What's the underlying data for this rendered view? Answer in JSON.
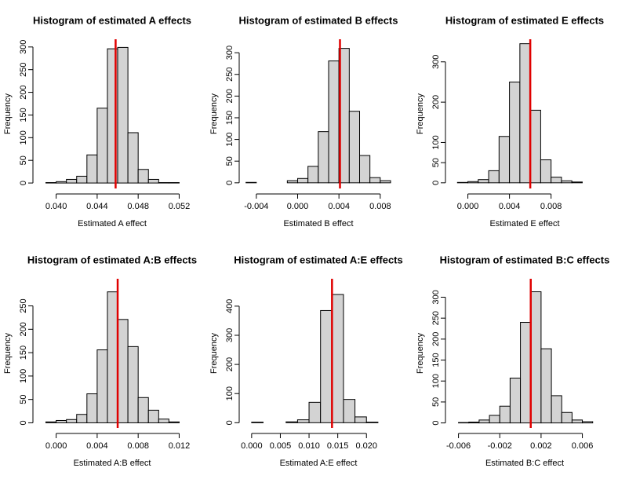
{
  "chart_data": [
    {
      "type": "histogram",
      "title": "Histogram of estimated A effects",
      "xlabel": "Estimated A effect",
      "ylabel": "Frequency",
      "bins": [
        0.039,
        0.04,
        0.041,
        0.042,
        0.043,
        0.044,
        0.045,
        0.046,
        0.047,
        0.048,
        0.049,
        0.05,
        0.051,
        0.052
      ],
      "values": [
        1,
        3,
        8,
        15,
        62,
        165,
        296,
        299,
        111,
        30,
        8,
        1,
        1
      ],
      "color": "#d3d3d3",
      "vline": 0.0458,
      "vline_color": "#e00000",
      "xlim": [
        0.0385,
        0.0525
      ],
      "ylim": [
        -12,
        317
      ],
      "xticks": [
        {
          "value": 0.04,
          "label": "0.040"
        },
        {
          "value": 0.044,
          "label": "0.044"
        },
        {
          "value": 0.048,
          "label": "0.048"
        },
        {
          "value": 0.052,
          "label": "0.052"
        }
      ],
      "yticks": [
        0,
        50,
        100,
        150,
        200,
        250,
        300
      ]
    },
    {
      "type": "histogram",
      "title": "Histogram of estimated B effects",
      "xlabel": "Estimated B effect",
      "ylabel": "Frequency",
      "bins": [
        -0.005,
        -0.004,
        -0.003,
        -0.002,
        -0.001,
        0.0,
        0.001,
        0.002,
        0.003,
        0.004,
        0.005,
        0.006,
        0.007,
        0.008,
        0.009
      ],
      "values": [
        1,
        0,
        0,
        0,
        5,
        10,
        38,
        118,
        281,
        310,
        165,
        63,
        12,
        5
      ],
      "color": "#d3d3d3",
      "vline": 0.0041,
      "vline_color": "#e00000",
      "xlim": [
        -0.0049,
        0.009
      ],
      "ylim": [
        -13,
        331
      ],
      "xticks": [
        {
          "value": -0.004,
          "label": "-0.004"
        },
        {
          "value": 0.0,
          "label": "0.000"
        },
        {
          "value": 0.004,
          "label": "0.004"
        },
        {
          "value": 0.008,
          "label": "0.008"
        }
      ],
      "yticks": [
        0,
        50,
        100,
        150,
        200,
        250,
        300
      ]
    },
    {
      "type": "histogram",
      "title": "Histogram of estimated E effects",
      "xlabel": "Estimated E effect",
      "ylabel": "Frequency",
      "bins": [
        -0.001,
        0.0,
        0.001,
        0.002,
        0.003,
        0.004,
        0.005,
        0.006,
        0.007,
        0.008,
        0.009,
        0.01,
        0.011
      ],
      "values": [
        1,
        3,
        8,
        30,
        115,
        250,
        345,
        180,
        57,
        14,
        5,
        2
      ],
      "color": "#d3d3d3",
      "vline": 0.006,
      "vline_color": "#e00000",
      "xlim": [
        -0.0014,
        0.0124
      ],
      "ylim": [
        -14,
        356
      ],
      "xticks": [
        {
          "value": 0.0,
          "label": "0.000"
        },
        {
          "value": 0.004,
          "label": "0.004"
        },
        {
          "value": 0.008,
          "label": "0.008"
        }
      ],
      "yticks": [
        0,
        50,
        100,
        200,
        300
      ]
    },
    {
      "type": "histogram",
      "title": "Histogram of estimated A:B effects",
      "xlabel": "Estimated A:B effect",
      "ylabel": "Frequency",
      "bins": [
        -0.001,
        0.0,
        0.001,
        0.002,
        0.003,
        0.004,
        0.005,
        0.006,
        0.007,
        0.008,
        0.009,
        0.01,
        0.011,
        0.012
      ],
      "values": [
        2,
        5,
        7,
        18,
        62,
        156,
        280,
        221,
        163,
        54,
        27,
        8,
        2
      ],
      "color": "#d3d3d3",
      "vline": 0.006,
      "vline_color": "#e00000",
      "xlim": [
        -0.0015,
        0.0125
      ],
      "ylim": [
        -11,
        308
      ],
      "xticks": [
        {
          "value": 0.0,
          "label": "0.000"
        },
        {
          "value": 0.004,
          "label": "0.004"
        },
        {
          "value": 0.008,
          "label": "0.008"
        },
        {
          "value": 0.012,
          "label": "0.012"
        }
      ],
      "yticks": [
        0,
        50,
        100,
        150,
        200,
        250
      ]
    },
    {
      "type": "histogram",
      "title": "Histogram of estimated A:E effects",
      "xlabel": "Estimated A:E effect",
      "ylabel": "Frequency",
      "bins": [
        0.0,
        0.002,
        0.004,
        0.006,
        0.008,
        0.01,
        0.012,
        0.014,
        0.016,
        0.018,
        0.02,
        0.022
      ],
      "values": [
        2,
        0,
        0,
        3,
        10,
        70,
        385,
        440,
        80,
        20,
        2
      ],
      "color": "#d3d3d3",
      "vline": 0.014,
      "vline_color": "#e00000",
      "xlim": [
        -0.0008,
        0.0242
      ],
      "ylim": [
        -18,
        494
      ],
      "xticks": [
        {
          "value": 0.0,
          "label": "0.000"
        },
        {
          "value": 0.005,
          "label": "0.005"
        },
        {
          "value": 0.01,
          "label": "0.010"
        },
        {
          "value": 0.015,
          "label": "0.015"
        },
        {
          "value": 0.02,
          "label": "0.020"
        }
      ],
      "yticks": [
        0,
        100,
        200,
        300,
        400
      ]
    },
    {
      "type": "histogram",
      "title": "Histogram of estimated B:C effects",
      "xlabel": "Estimated B:C effect",
      "ylabel": "Frequency",
      "bins": [
        -0.006,
        -0.005,
        -0.004,
        -0.003,
        -0.002,
        -0.001,
        0.0,
        0.001,
        0.002,
        0.003,
        0.004,
        0.005,
        0.006,
        0.007
      ],
      "values": [
        1,
        2,
        7,
        18,
        40,
        107,
        240,
        313,
        177,
        65,
        25,
        7,
        3
      ],
      "color": "#d3d3d3",
      "vline": 0.001,
      "vline_color": "#e00000",
      "xlim": [
        -0.0065,
        0.0074
      ],
      "ylim": [
        -12,
        344
      ],
      "xticks": [
        {
          "value": -0.006,
          "label": "-0.006"
        },
        {
          "value": -0.002,
          "label": "-0.002"
        },
        {
          "value": 0.002,
          "label": "0.002"
        },
        {
          "value": 0.006,
          "label": "0.006"
        }
      ],
      "yticks": [
        0,
        50,
        100,
        150,
        200,
        250,
        300
      ]
    }
  ]
}
